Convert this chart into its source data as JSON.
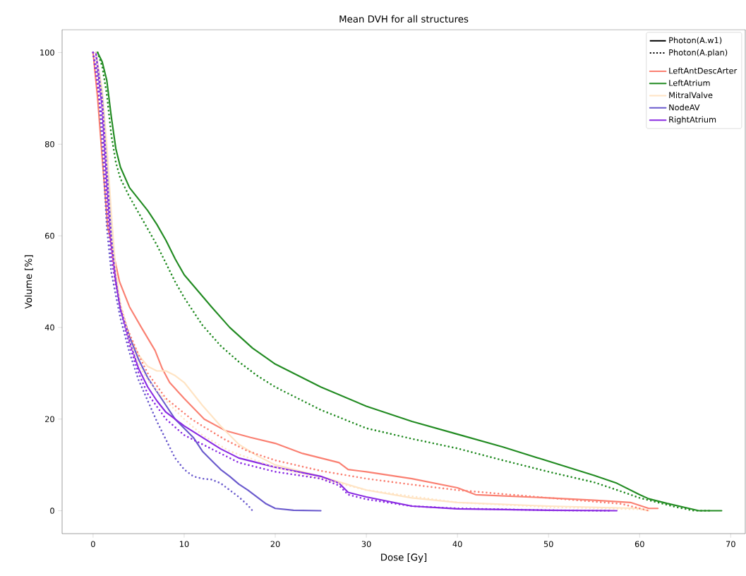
{
  "chart_data": {
    "type": "line",
    "title": "Mean DVH for all structures",
    "xlabel": "Dose [Gy]",
    "ylabel": "Volume [%]",
    "xlim": [
      -3.4,
      71.6
    ],
    "ylim": [
      -5,
      105
    ],
    "xticks": [
      0,
      10,
      20,
      30,
      40,
      50,
      60,
      70
    ],
    "yticks": [
      0,
      20,
      40,
      60,
      80,
      100
    ],
    "grid": false,
    "legend": "top right",
    "marker": "none",
    "annotations": [
      "Photon(A.w1)",
      "Photon(A.plan)"
    ],
    "series": [
      {
        "name": "LeftAntDescArter",
        "color": "#fa8072",
        "line_style": "solid",
        "x": [
          0,
          0.5,
          1,
          1.6,
          2.2,
          2.9,
          4,
          5.3,
          6.8,
          7.6,
          8.4,
          10,
          12.2,
          14.5,
          17.3,
          20,
          23,
          27,
          28,
          30,
          35,
          40,
          42,
          50,
          55,
          59,
          61,
          62
        ],
        "values": [
          100,
          90,
          77,
          62,
          null,
          50,
          44.5,
          40,
          35,
          31,
          28,
          24.5,
          20,
          17.5,
          16,
          14.7,
          12.5,
          10.5,
          9,
          8.5,
          7,
          5,
          3.5,
          2.8,
          2.3,
          1.8,
          0.5,
          0.5
        ]
      },
      {
        "name": "LeftAtrium",
        "color": "#228b22",
        "line_style": "solid",
        "x": [
          0.5,
          1,
          1.5,
          2,
          2.5,
          3,
          4,
          5,
          6,
          7,
          8,
          9,
          10,
          11.5,
          13,
          15,
          17.5,
          20,
          25,
          30,
          35,
          40,
          45,
          50,
          55,
          57.5,
          60,
          61,
          63,
          65,
          66.5,
          67,
          69
        ],
        "values": [
          100,
          98,
          94,
          86,
          79,
          75,
          70.5,
          68,
          65.5,
          62.5,
          59,
          55,
          51.5,
          48,
          44.5,
          40,
          35.5,
          32,
          27,
          22.8,
          19.5,
          16.7,
          13.9,
          10.8,
          7.7,
          6,
          3.5,
          2.6,
          1.6,
          0.7,
          0,
          0,
          0
        ]
      },
      {
        "name": "MitralValve",
        "color": "#ffe4c4",
        "line_style": "solid",
        "x": [
          0.3,
          1,
          1.5,
          2,
          2.5,
          3,
          4,
          5,
          6,
          7,
          8,
          9,
          10,
          11,
          12,
          14,
          16,
          18,
          20,
          25,
          30,
          35,
          40,
          50,
          60,
          61
        ],
        "values": [
          100,
          92,
          80,
          65,
          52,
          45,
          38,
          34,
          31.5,
          30.5,
          30.5,
          29.5,
          28,
          25.5,
          23,
          18.5,
          14.5,
          12,
          10,
          7.5,
          4.5,
          2.8,
          1.8,
          1,
          0.5,
          0
        ]
      },
      {
        "name": "NodeAV",
        "color": "#6a5acd",
        "line_style": "solid",
        "x": [
          0.3,
          1,
          1.5,
          2,
          2.5,
          3,
          4,
          5,
          6,
          7,
          8,
          9,
          10,
          11,
          12,
          13,
          14,
          15,
          16,
          17,
          18,
          19,
          20,
          22,
          25
        ],
        "values": [
          100,
          90,
          75,
          60,
          50,
          44,
          38,
          33,
          29,
          26,
          23,
          20,
          18,
          16,
          13,
          11,
          9,
          7.5,
          5.8,
          4.5,
          3,
          1.5,
          0.5,
          0.1,
          0
        ]
      },
      {
        "name": "RightAtrium",
        "color": "#8a2be2",
        "line_style": "solid",
        "x": [
          0.3,
          1,
          1.5,
          2,
          2.5,
          3,
          4,
          5,
          6,
          7,
          8,
          9,
          10,
          12,
          14,
          16,
          18,
          20,
          25,
          27,
          28,
          30,
          35,
          40,
          50,
          57.5
        ],
        "values": [
          100,
          88,
          72,
          58,
          50,
          44,
          37,
          31,
          27,
          24,
          21.5,
          20,
          18.5,
          16,
          13.5,
          11.5,
          10.5,
          9.5,
          7.5,
          6,
          4,
          3,
          1,
          0.4,
          0.1,
          0
        ]
      },
      {
        "color": "#fa8072",
        "line_style": "dotted",
        "x": [
          0,
          0.5,
          1,
          1.5,
          2,
          2.4,
          3,
          3.7,
          5,
          6,
          8,
          10.8,
          12,
          14.5,
          17,
          20,
          25,
          30,
          35,
          40,
          50,
          58,
          60,
          61
        ],
        "values": [
          100,
          92,
          80,
          66,
          null,
          50,
          45,
          40,
          34,
          30,
          24.5,
          20,
          18.5,
          15.5,
          13,
          11,
          8.7,
          7,
          5.7,
          4.5,
          2.8,
          1.5,
          0.5,
          0
        ]
      },
      {
        "color": "#228b22",
        "line_style": "dotted",
        "x": [
          0.5,
          1,
          1.5,
          2,
          2.5,
          3,
          4,
          5,
          6,
          7,
          8,
          9,
          10,
          12,
          14,
          16,
          18,
          20,
          25,
          30,
          35,
          40,
          45,
          50,
          55,
          58,
          60,
          62,
          64,
          66,
          68
        ],
        "values": [
          100,
          97,
          91,
          82,
          76,
          72.5,
          68.5,
          65,
          61.5,
          58,
          54,
          50,
          46.5,
          40.5,
          36,
          32.5,
          29.5,
          27,
          22,
          18,
          15.7,
          13.6,
          11,
          8.5,
          6.2,
          4.2,
          2.8,
          1.8,
          0.8,
          0,
          0
        ]
      },
      {
        "color": "#ffe4c4",
        "line_style": "dotted",
        "x": [
          0.3,
          1,
          2,
          3,
          4,
          5,
          6,
          8,
          10,
          12,
          15,
          20,
          25,
          30,
          40,
          50,
          60,
          61
        ],
        "values": [
          100,
          90,
          60,
          45,
          37,
          32,
          28.5,
          24,
          20,
          16.5,
          13,
          9.5,
          7,
          4.5,
          1.8,
          0.8,
          0.3,
          0
        ]
      },
      {
        "color": "#6a5acd",
        "line_style": "dotted",
        "x": [
          0,
          0.5,
          1,
          1.5,
          2,
          3,
          4,
          5,
          6,
          7,
          8,
          9,
          10,
          11,
          12,
          13,
          14,
          15,
          16,
          17,
          17.5
        ],
        "values": [
          100,
          95,
          80,
          62,
          52,
          42,
          34.5,
          28.5,
          24,
          19.5,
          15.5,
          11.5,
          9,
          7.5,
          7,
          6.8,
          6,
          4.5,
          3,
          1.2,
          0
        ]
      },
      {
        "color": "#8a2be2",
        "line_style": "dotted",
        "x": [
          0,
          1,
          1.5,
          2,
          3,
          4,
          5,
          6,
          8,
          10,
          12,
          14,
          16,
          18,
          20,
          25,
          27,
          28,
          30,
          35,
          40,
          50,
          57
        ],
        "values": [
          100,
          85,
          68,
          55,
          44,
          36,
          30,
          25.5,
          20,
          16.5,
          14.5,
          12.5,
          10.5,
          9.5,
          8.5,
          7,
          5.5,
          3.5,
          2.5,
          1,
          0.5,
          0.1,
          0
        ]
      }
    ]
  }
}
